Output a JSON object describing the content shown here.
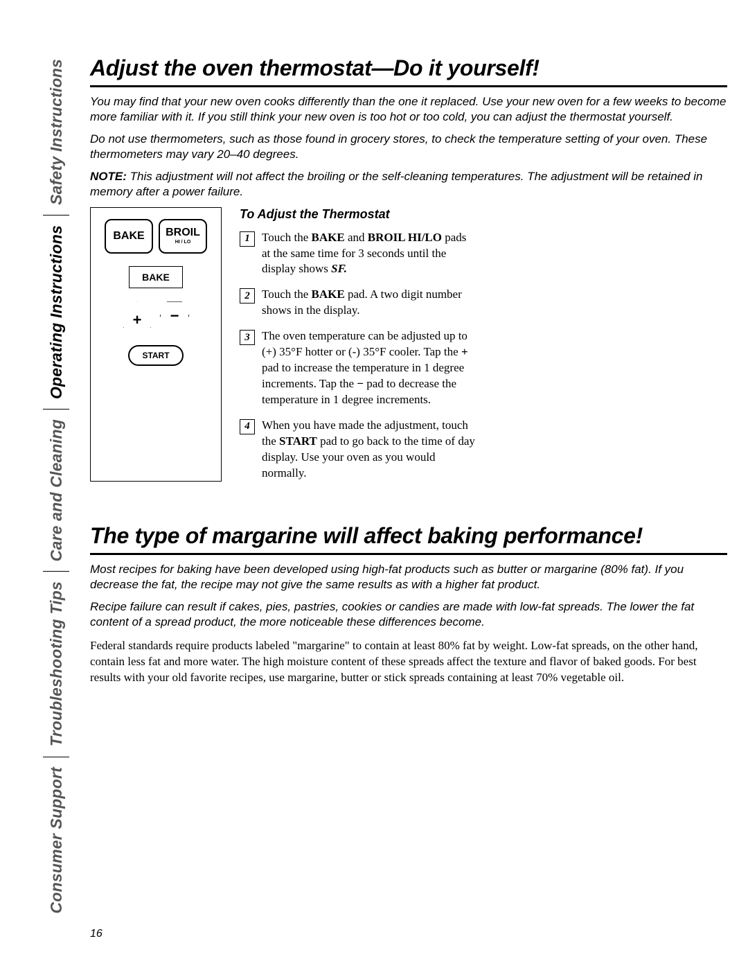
{
  "tabs": {
    "items": [
      {
        "label": "Safety Instructions",
        "active": false
      },
      {
        "label": "Operating Instructions",
        "active": true
      },
      {
        "label": "Care and Cleaning",
        "active": false
      },
      {
        "label": "Troubleshooting Tips",
        "active": false
      },
      {
        "label": "Consumer Support",
        "active": false
      }
    ],
    "active_color": "#000000",
    "inactive_color": "#555555",
    "fontsize": 23
  },
  "section1": {
    "heading": "Adjust the oven thermostat—Do it yourself!",
    "intro1": "You may find that your new oven cooks differently than the one it replaced. Use your new oven for a few weeks to become more familiar with it. If you still think your new oven is too hot or too cold, you can adjust the thermostat yourself.",
    "intro2": "Do not use thermometers, such as those found in grocery stores, to check the temperature setting of your oven. These thermometers may vary 20–40 degrees.",
    "note_label": "NOTE:",
    "note_text": "This adjustment will not affect the broiling or the self-cleaning temperatures. The adjustment will be retained in memory after a power failure.",
    "panel": {
      "bake_label": "BAKE",
      "broil_label": "BROIL",
      "broil_sub": "HI / LO",
      "display_text": "BAKE",
      "plus_label": "+",
      "minus_label": "−",
      "start_label": "START"
    },
    "subhead": "To Adjust the Thermostat",
    "steps": [
      {
        "n": "1",
        "html": "Touch the <b>BAKE</b> and <b>BROIL HI/LO</b> pads at the same time for 3 seconds until the display shows <b><i>SF.</i></b>"
      },
      {
        "n": "2",
        "html": "Touch the <b>BAKE</b> pad. A two digit number shows in the display."
      },
      {
        "n": "3",
        "html": "The oven temperature can be adjusted up to (+) 35°F hotter or (-) 35°F cooler. Tap the <b>+</b> pad to increase the temperature in 1 degree increments. Tap the <b>−</b> pad to decrease the temperature in 1 degree increments."
      },
      {
        "n": "4",
        "html": "When you have made the adjustment, touch the <b>START</b> pad to go back to the time of day display. Use your oven as you would normally."
      }
    ]
  },
  "section2": {
    "heading": "The type of margarine will affect baking performance!",
    "intro1": "Most recipes for baking have been developed using high-fat products such as butter or margarine (80% fat). If you decrease the fat, the recipe may not give the same results as with a higher fat product.",
    "intro2": "Recipe failure can result if cakes, pies, pastries, cookies or candies are made with low-fat spreads. The lower the fat content of a spread product, the more noticeable these differences become.",
    "body": "Federal standards require products labeled \"margarine\" to contain at least 80% fat by weight. Low-fat spreads, on the other hand, contain less fat and more water. The high moisture content of these spreads affect the texture and flavor of baked goods. For best results with your old favorite recipes, use margarine, butter or stick spreads containing at least 70% vegetable oil."
  },
  "page_number": "16"
}
